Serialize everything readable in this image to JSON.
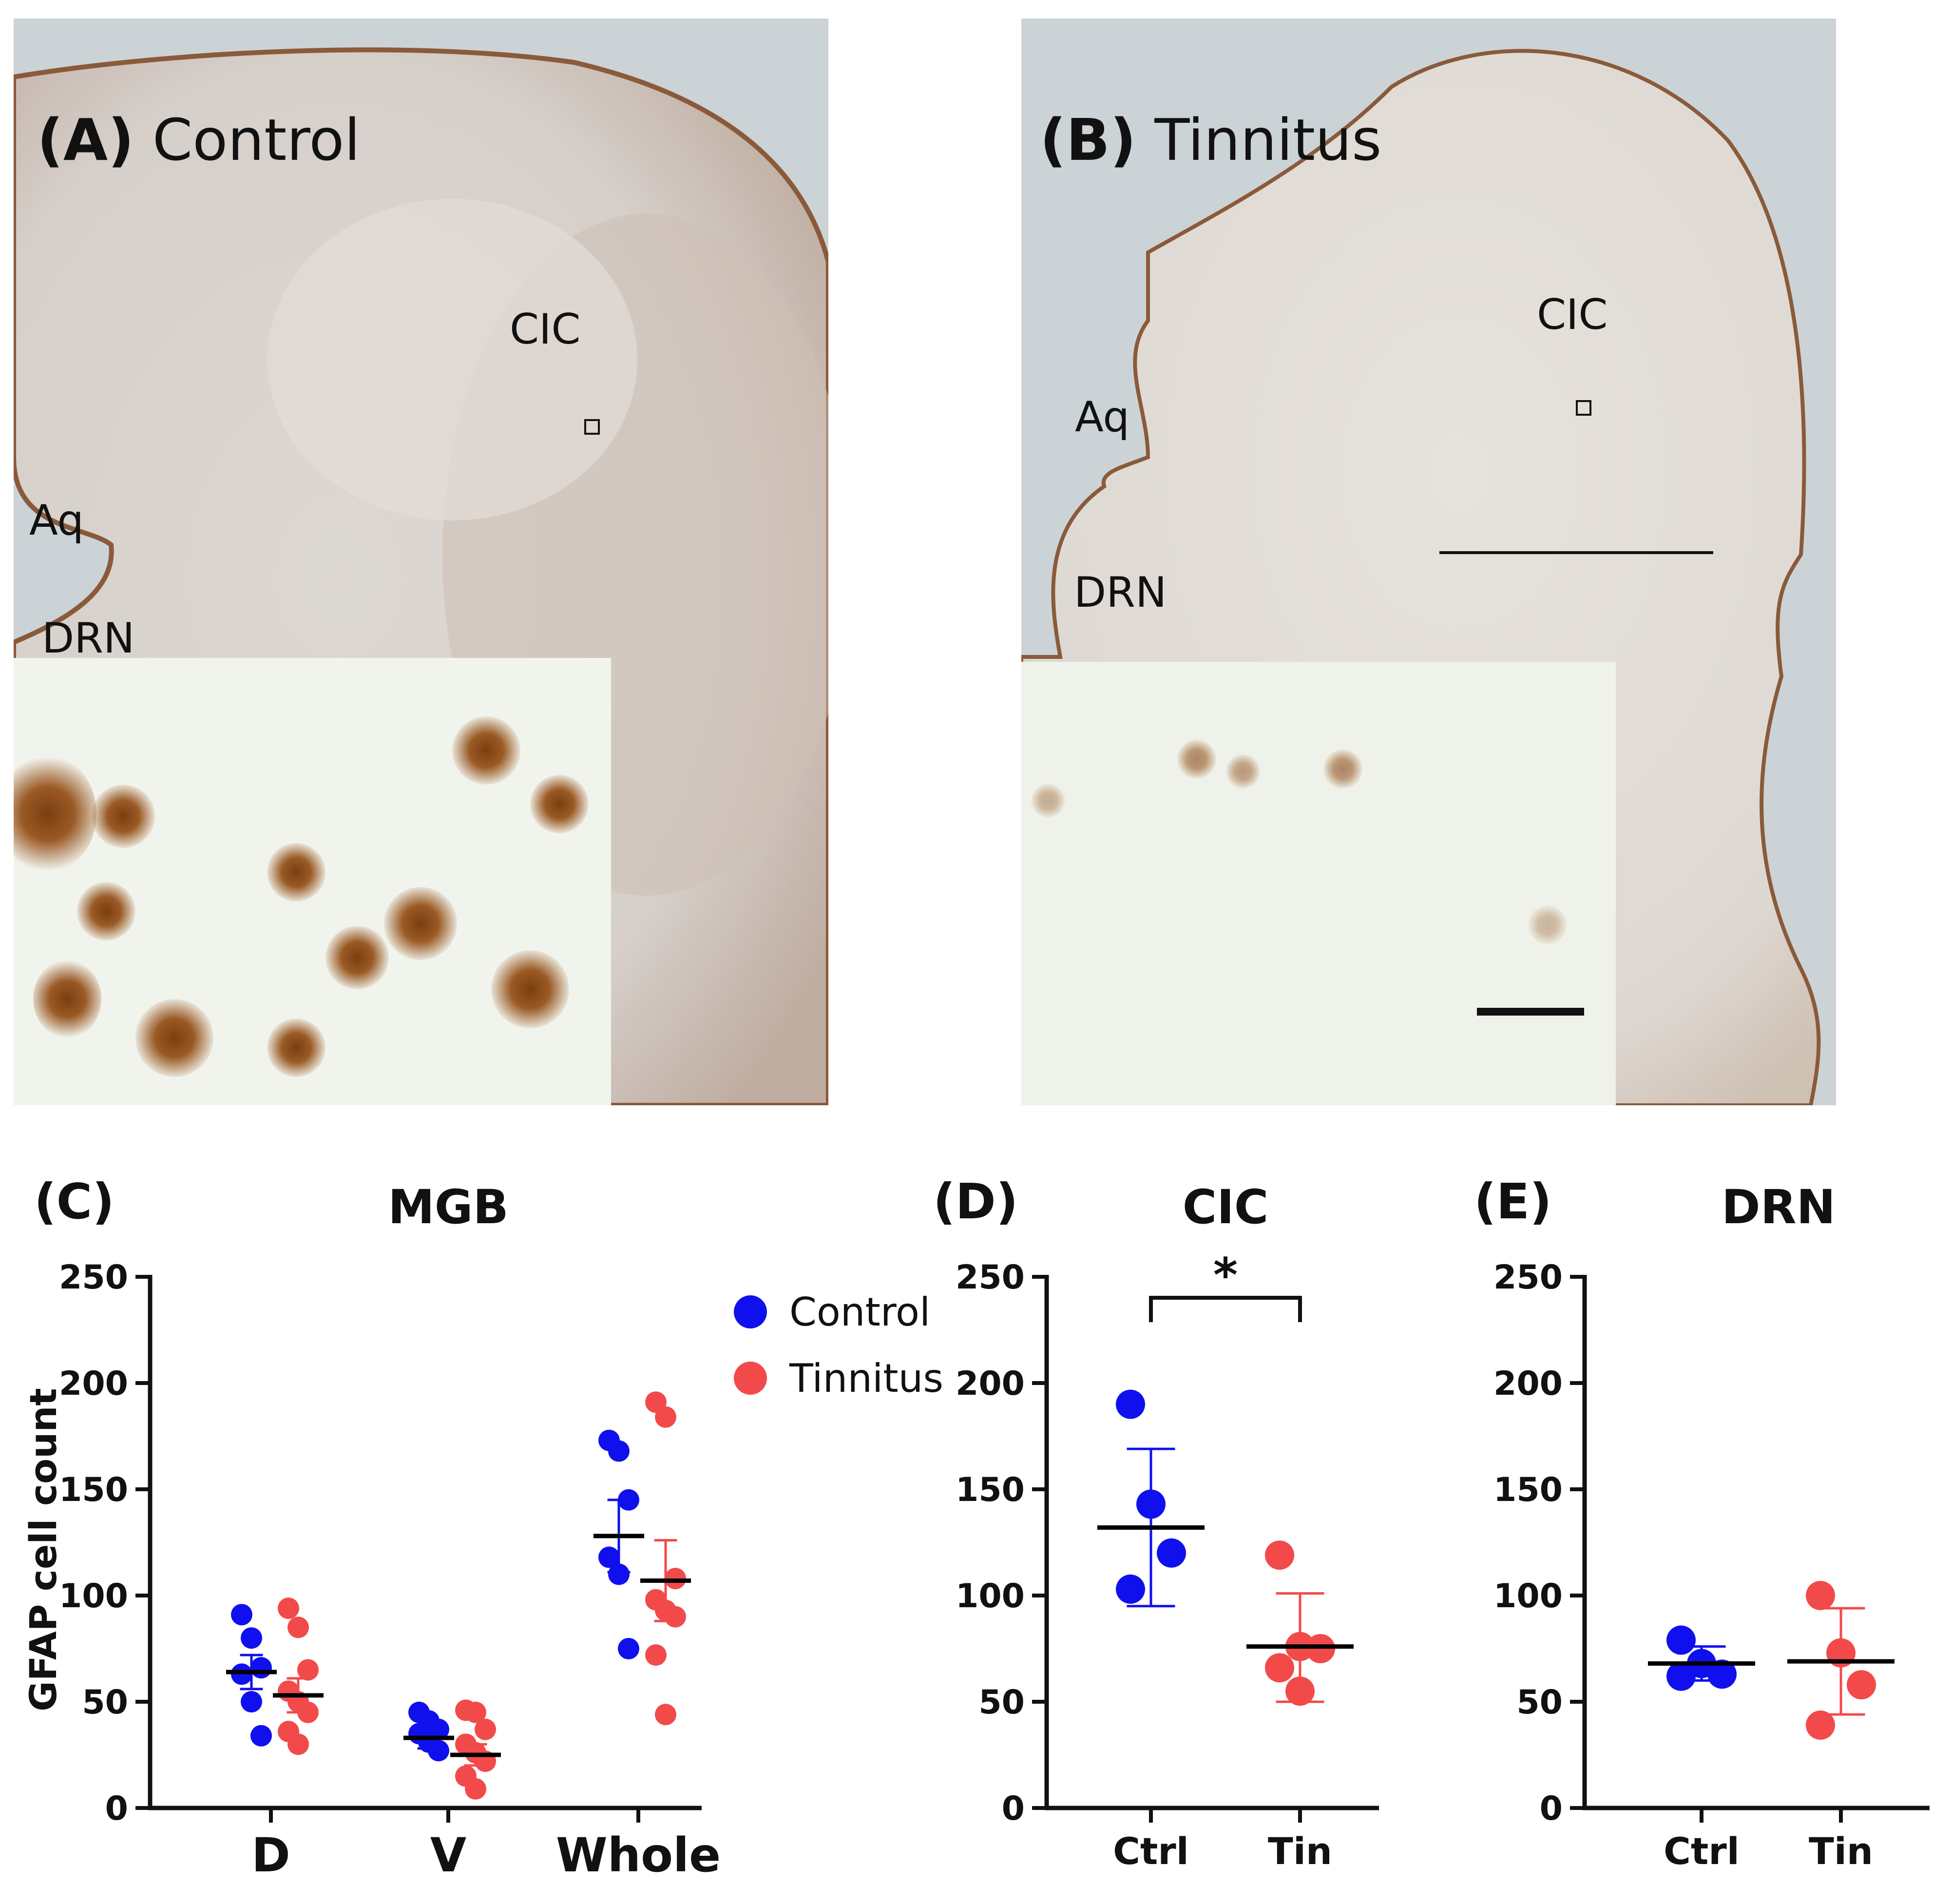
{
  "panels": {
    "A": {
      "letter": "(A)",
      "group": "Control",
      "region_cic": "CIC",
      "region_aq": "Aq",
      "region_drn": "DRN"
    },
    "B": {
      "letter": "(B)",
      "group": "Tinnitus",
      "region_cic": "CIC",
      "region_aq": "Aq",
      "region_drn": "DRN"
    },
    "C": {
      "letter": "(C)",
      "title": "MGB"
    },
    "D": {
      "letter": "(D)",
      "title": "CIC",
      "significance": "*"
    },
    "E": {
      "letter": "(E)",
      "title": "DRN"
    }
  },
  "colors": {
    "control": "#1010ee",
    "tinnitus": "#f24a4a",
    "mean": "#000000"
  },
  "chart_data": [
    {
      "id": "C",
      "type": "scatter",
      "title": "MGB",
      "ylabel": "GFAP cell count",
      "xlabel": "",
      "ylim": [
        0,
        250
      ],
      "yticks": [
        0,
        50,
        100,
        150,
        200,
        250
      ],
      "categories": [
        "D",
        "V",
        "Whole"
      ],
      "legend": [
        {
          "name": "Control"
        },
        {
          "name": "Tinnitus"
        }
      ],
      "series": [
        {
          "name": "Control",
          "color_key": "control",
          "points": [
            [
              91,
              80,
              66,
              63,
              50,
              34
            ],
            [
              45,
              41,
              37,
              35,
              31,
              27
            ],
            [
              173,
              168,
              145,
              118,
              110,
              75
            ]
          ],
          "mean": [
            64,
            33,
            128
          ],
          "err_low": [
            56,
            28,
            111
          ],
          "err_high": [
            72,
            38,
            145
          ]
        },
        {
          "name": "Tinnitus",
          "color_key": "tinnitus",
          "points": [
            [
              94,
              85,
              65,
              55,
              50,
              45,
              36,
              30
            ],
            [
              46,
              45,
              37,
              30,
              26,
              22,
              15,
              9
            ],
            [
              191,
              184,
              108,
              98,
              93,
              90,
              72,
              44
            ]
          ],
          "mean": [
            53,
            25,
            107
          ],
          "err_low": [
            45,
            20,
            88
          ],
          "err_high": [
            61,
            30,
            126
          ]
        }
      ]
    },
    {
      "id": "D",
      "type": "scatter",
      "title": "CIC",
      "ylim": [
        0,
        250
      ],
      "yticks": [
        0,
        50,
        100,
        150,
        200,
        250
      ],
      "categories": [
        "Ctrl",
        "Tin"
      ],
      "series": [
        {
          "name": "Ctrl",
          "color_key": "control",
          "points": [
            190,
            143,
            120,
            103
          ],
          "mean": 132,
          "err_low": 95,
          "err_high": 169
        },
        {
          "name": "Tin",
          "color_key": "tinnitus",
          "points": [
            119,
            76,
            75,
            66,
            55
          ],
          "mean": 76,
          "err_low": 50,
          "err_high": 101
        }
      ],
      "annotation": "*"
    },
    {
      "id": "E",
      "type": "scatter",
      "title": "DRN",
      "ylim": [
        0,
        250
      ],
      "yticks": [
        0,
        50,
        100,
        150,
        200,
        250
      ],
      "categories": [
        "Ctrl",
        "Tin"
      ],
      "series": [
        {
          "name": "Ctrl",
          "color_key": "control",
          "points": [
            79,
            68,
            63,
            62
          ],
          "mean": 68,
          "err_low": 60,
          "err_high": 76
        },
        {
          "name": "Tin",
          "color_key": "tinnitus",
          "points": [
            100,
            73,
            58,
            39
          ],
          "mean": 69,
          "err_low": 44,
          "err_high": 94
        }
      ]
    }
  ]
}
